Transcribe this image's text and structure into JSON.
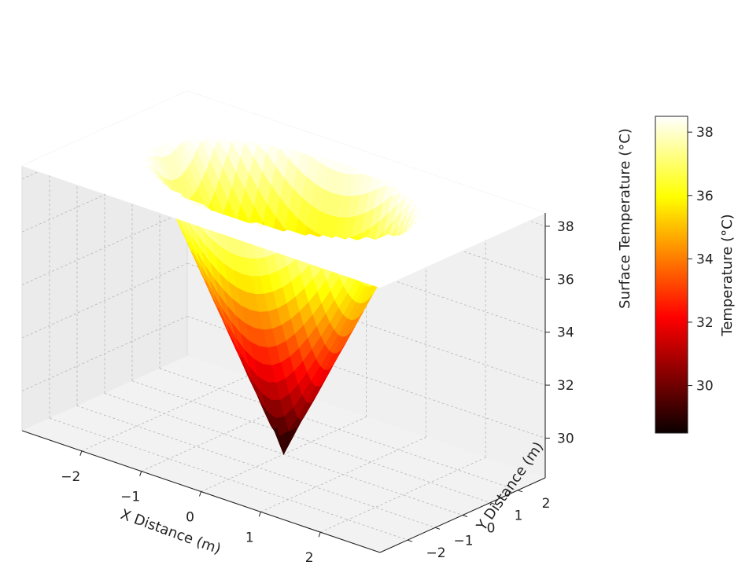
{
  "chart_data": {
    "type": "surface3d",
    "function": "z = min(38.5, 28.5 + 5*sqrt(x^2 + y^2))",
    "x_range": [
      -3,
      3
    ],
    "y_range": [
      -3,
      3
    ],
    "z_range": [
      28.5,
      38.5
    ],
    "plateau": 38.5,
    "cone_base": 28.5,
    "cone_slope": 5,
    "grid": true,
    "xlabel": "X Distance (m)",
    "ylabel": "Y Distance (m)",
    "zlabel": "Surface Temperature (°C)",
    "x_ticks": [
      -2,
      -1,
      0,
      1,
      2
    ],
    "x_tick_labels": [
      "−2",
      "−1",
      "0",
      "1",
      "2"
    ],
    "y_ticks": [
      -2,
      -1,
      0,
      1,
      2
    ],
    "y_tick_labels": [
      "−2",
      "−1",
      "0",
      "1",
      "2"
    ],
    "z_ticks": [
      30,
      32,
      34,
      36,
      38
    ],
    "z_tick_labels": [
      "30",
      "32",
      "34",
      "36",
      "38"
    ],
    "colormap": "hot",
    "colorbar": {
      "label": "Temperature (°C)",
      "range": [
        28.5,
        38.5
      ],
      "ticks": [
        30,
        32,
        34,
        36,
        38
      ],
      "tick_labels": [
        "30",
        "32",
        "34",
        "36",
        "38"
      ]
    }
  }
}
